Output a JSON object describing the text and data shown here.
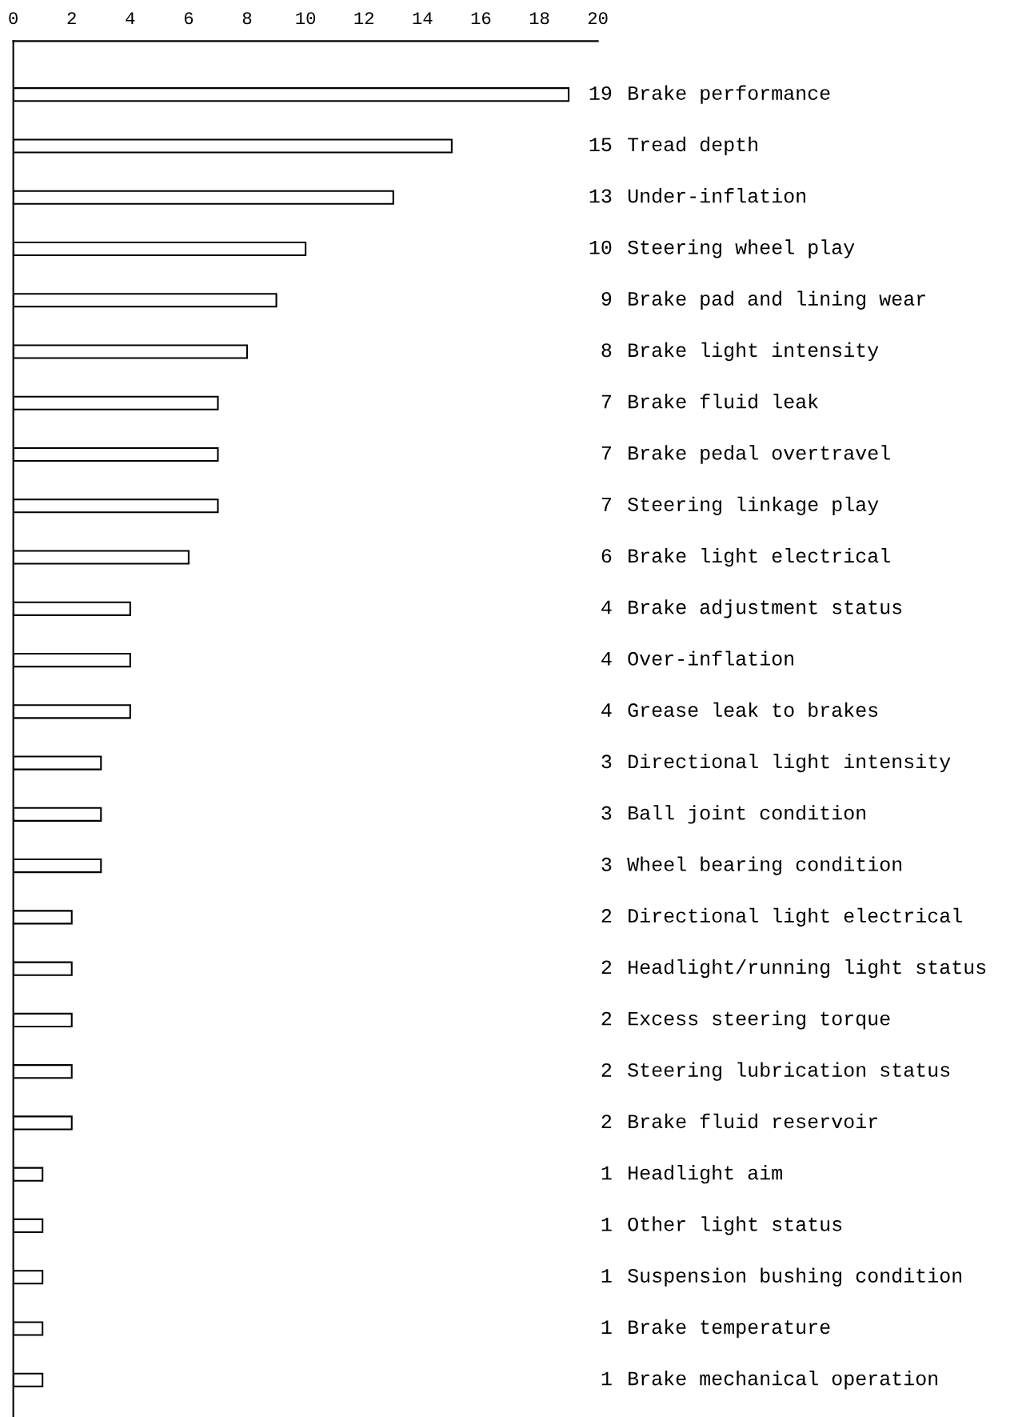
{
  "chart_data": {
    "type": "bar",
    "orientation": "horizontal",
    "categories": [
      "Brake performance",
      "Tread depth",
      "Under-inflation",
      "Steering wheel play",
      "Brake pad and lining wear",
      "Brake light intensity",
      "Brake fluid leak",
      "Brake pedal overtravel",
      "Steering linkage play",
      "Brake light electrical",
      "Brake adjustment status",
      "Over-inflation",
      "Grease leak to brakes",
      "Directional light intensity",
      "Ball joint condition",
      "Wheel bearing condition",
      "Directional light electrical",
      "Headlight/running light status",
      "Excess steering torque",
      "Steering lubrication status",
      "Brake fluid reservoir",
      "Headlight aim",
      "Other light status",
      "Suspension bushing condition",
      "Brake temperature",
      "Brake mechanical operation"
    ],
    "values": [
      19,
      15,
      13,
      10,
      9,
      8,
      7,
      7,
      7,
      6,
      4,
      4,
      4,
      3,
      3,
      3,
      2,
      2,
      2,
      2,
      2,
      1,
      1,
      1,
      1,
      1
    ],
    "color": "#000000",
    "xlim": [
      0,
      20
    ],
    "xticks": [
      0,
      2,
      4,
      6,
      8,
      10,
      12,
      14,
      16,
      18,
      20
    ],
    "data_labels": true,
    "grid": false
  }
}
